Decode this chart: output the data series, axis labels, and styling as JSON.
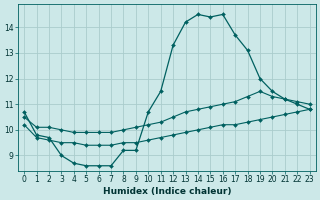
{
  "xlabel": "Humidex (Indice chaleur)",
  "bg_color": "#cce8e8",
  "grid_color": "#aacccc",
  "line_color": "#006060",
  "hours": [
    0,
    1,
    2,
    3,
    4,
    5,
    6,
    7,
    8,
    9,
    10,
    11,
    12,
    13,
    14,
    15,
    16,
    17,
    18,
    19,
    20,
    21,
    22,
    23
  ],
  "main_line": [
    10.7,
    9.8,
    9.7,
    9.0,
    8.7,
    8.6,
    8.6,
    8.6,
    9.2,
    9.2,
    10.7,
    11.5,
    13.3,
    14.2,
    14.5,
    14.4,
    14.5,
    13.7,
    13.1,
    12.0,
    11.5,
    11.2,
    11.0,
    10.8
  ],
  "upper_line": [
    10.5,
    10.1,
    10.1,
    10.0,
    9.9,
    9.9,
    9.9,
    9.9,
    10.0,
    10.1,
    10.2,
    10.3,
    10.5,
    10.7,
    10.8,
    10.9,
    11.0,
    11.1,
    11.3,
    11.5,
    11.3,
    11.2,
    11.1,
    11.0
  ],
  "lower_line": [
    10.2,
    9.7,
    9.6,
    9.5,
    9.5,
    9.4,
    9.4,
    9.4,
    9.5,
    9.5,
    9.6,
    9.7,
    9.8,
    9.9,
    10.0,
    10.1,
    10.2,
    10.2,
    10.3,
    10.4,
    10.5,
    10.6,
    10.7,
    10.8
  ],
  "yticks": [
    9,
    10,
    11,
    12,
    13,
    14
  ],
  "xtick_labels": [
    "0",
    "1",
    "2",
    "3",
    "4",
    "5",
    "6",
    "7",
    "8",
    "9",
    "10",
    "11",
    "12",
    "13",
    "14",
    "15",
    "16",
    "17",
    "18",
    "19",
    "20",
    "21",
    "22",
    "23"
  ],
  "ylim": [
    8.4,
    14.9
  ],
  "xlim": [
    -0.5,
    23.5
  ],
  "label_fontsize": 6.5,
  "tick_fontsize": 5.5
}
